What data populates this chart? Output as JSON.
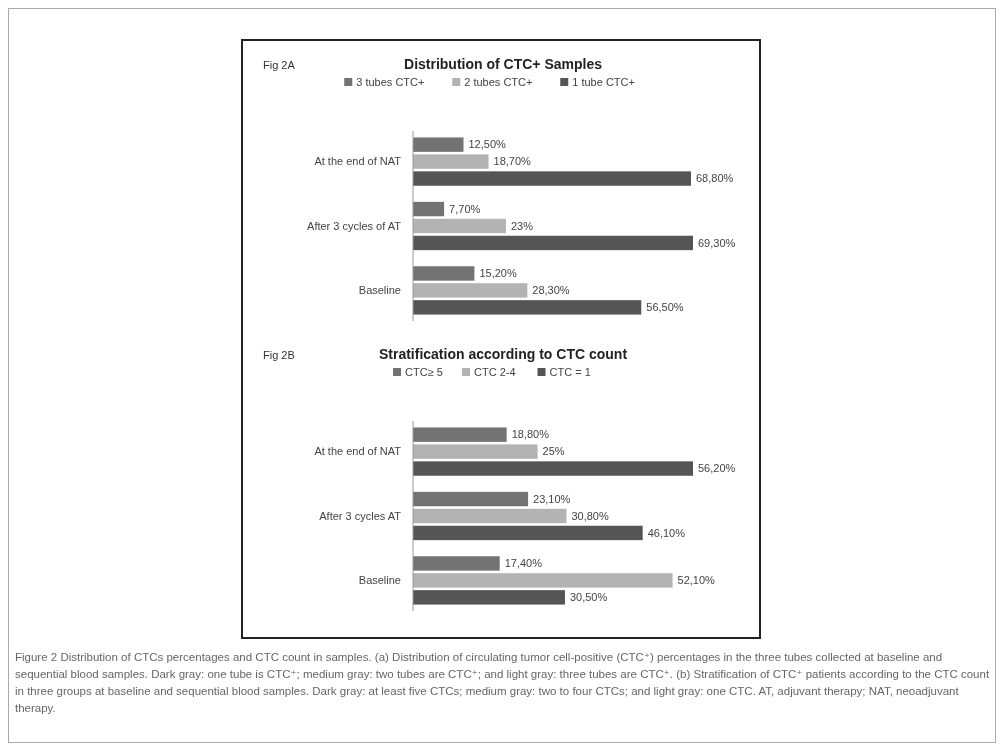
{
  "chart_data": [
    {
      "type": "bar",
      "orientation": "horizontal",
      "title": "Distribution of CTC+ Samples",
      "legend": "top",
      "annotations": [
        "Fig 2A"
      ],
      "categories": [
        "At the end of NAT",
        "After 3 cycles of AT",
        "Baseline"
      ],
      "series": [
        {
          "name": "3 tubes CTC+",
          "color": "#737373",
          "values": [
            12.5,
            7.7,
            15.2
          ],
          "value_labels": [
            "12,50%",
            "7,70%",
            "15,20%"
          ]
        },
        {
          "name": "2 tubes CTC+",
          "color": "#b3b3b3",
          "values": [
            18.7,
            23,
            28.3
          ],
          "value_labels": [
            "18,70%",
            "23%",
            "28,30%"
          ]
        },
        {
          "name": "1 tube CTC+",
          "color": "#555555",
          "values": [
            68.8,
            69.3,
            56.5
          ],
          "value_labels": [
            "68,80%",
            "69,30%",
            "56,50%"
          ]
        }
      ]
    },
    {
      "type": "bar",
      "orientation": "horizontal",
      "title": "Stratification according to CTC count",
      "legend": "top",
      "annotations": [
        "Fig 2B",
        "Figure 2 Distribution of CTCs percentages and CTC count in samples. (a) Distribution of circulating tumor cell-positive (CTC⁺) percentages in the three tubes collected at baseline and sequential blood samples. Dark gray: one tube is CTC⁺; medium gray: two tubes are CTC⁺; and light gray: three tubes are CTC⁺. (b) Stratification of CTC⁺ patients according to the CTC count in three groups at baseline and sequential blood samples. Dark gray: at least five CTCs; medium gray: two to four CTCs; and light gray: one CTC. AT, adjuvant therapy; NAT, neoadjuvant therapy."
      ],
      "categories": [
        "At the end of NAT",
        "After 3 cycles AT",
        "Baseline"
      ],
      "series": [
        {
          "name": "CTC≥ 5",
          "color": "#737373",
          "values": [
            18.8,
            23.1,
            17.4
          ],
          "value_labels": [
            "18,80%",
            "23,10%",
            "17,40%"
          ]
        },
        {
          "name": "CTC 2-4",
          "color": "#b3b3b3",
          "values": [
            25,
            30.8,
            52.1
          ],
          "value_labels": [
            "25%",
            "30,80%",
            "52,10%"
          ]
        },
        {
          "name": "CTC = 1",
          "color": "#555555",
          "values": [
            56.2,
            46.1,
            30.5
          ],
          "value_labels": [
            "56,20%",
            "46,10%",
            "30,50%"
          ]
        }
      ]
    }
  ]
}
